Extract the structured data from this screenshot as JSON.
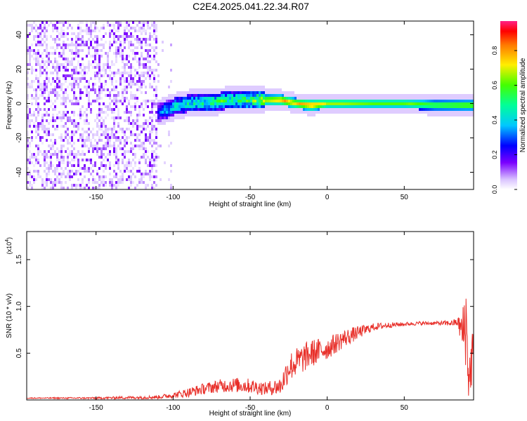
{
  "title": "C2E4.2025.041.22.34.R07",
  "chart_data": [
    {
      "type": "heatmap",
      "xlabel": "Height of straight line (km)",
      "ylabel": "Frequency (Hz)",
      "xlim": [
        -195,
        95
      ],
      "ylim": [
        -50,
        48
      ],
      "xticks": [
        -150,
        -100,
        -50,
        0,
        50
      ],
      "yticks": [
        -40,
        -20,
        0,
        20,
        40
      ],
      "colorbar": {
        "label": "Normalized spectral amplitude",
        "range": [
          0.0,
          0.97
        ],
        "ticks": [
          0.0,
          0.2,
          0.4,
          0.6,
          0.8
        ]
      },
      "colors": [
        "#ffffff",
        "#c8a6ff",
        "#7a00ff",
        "#0000ff",
        "#00c8ff",
        "#00ff88",
        "#66ff00",
        "#ffee00",
        "#ff8800",
        "#ff0000",
        "#ff2288"
      ],
      "noise_region": {
        "x": [
          -195,
          -110
        ],
        "level": 0.15
      },
      "ridge": [
        {
          "x": -108,
          "freq": -5,
          "amp": 0.35
        },
        {
          "x": -100,
          "freq": -2,
          "amp": 0.45
        },
        {
          "x": -90,
          "freq": 0,
          "amp": 0.5
        },
        {
          "x": -75,
          "freq": 1,
          "amp": 0.55
        },
        {
          "x": -60,
          "freq": 2,
          "amp": 0.55
        },
        {
          "x": -50,
          "freq": 2,
          "amp": 0.6
        },
        {
          "x": -40,
          "freq": 2,
          "amp": 0.75
        },
        {
          "x": -30,
          "freq": 2,
          "amp": 0.85
        },
        {
          "x": -20,
          "freq": 0,
          "amp": 0.8
        },
        {
          "x": -10,
          "freq": -1,
          "amp": 0.9
        },
        {
          "x": 0,
          "freq": 0,
          "amp": 0.7
        },
        {
          "x": 10,
          "freq": 0,
          "amp": 0.7
        },
        {
          "x": 30,
          "freq": 0,
          "amp": 0.65
        },
        {
          "x": 50,
          "freq": 0,
          "amp": 0.65
        },
        {
          "x": 70,
          "freq": -1,
          "amp": 0.65
        },
        {
          "x": 90,
          "freq": -1,
          "amp": 0.7
        }
      ]
    },
    {
      "type": "line",
      "xlabel": "Height of straight line (km)",
      "ylabel": "SNR (10 * v/v)",
      "yscale_label": "(x10",
      "yscale_exp": "4",
      "yscale_close": ")",
      "xlim": [
        -195,
        95
      ],
      "ylim": [
        0,
        1.8
      ],
      "xticks": [
        -150,
        -100,
        -50,
        0,
        50
      ],
      "yticks": [
        0.5,
        1.0,
        1.5
      ],
      "ytick_labels": [
        "0.5",
        "1.0",
        "1.5"
      ],
      "color": "#e8302a",
      "series": [
        {
          "x": [
            -195,
            -150,
            -110,
            -100,
            -90,
            -80,
            -70,
            -60,
            -50,
            -40,
            -30,
            -25,
            -20,
            -10,
            0,
            10,
            20,
            30,
            40,
            50,
            60,
            70,
            80,
            85,
            88,
            90,
            92,
            95
          ],
          "y": [
            0.02,
            0.02,
            0.03,
            0.05,
            0.08,
            0.12,
            0.15,
            0.16,
            0.15,
            0.12,
            0.15,
            0.35,
            0.4,
            0.5,
            0.55,
            0.65,
            0.72,
            0.78,
            0.8,
            0.81,
            0.82,
            0.82,
            0.82,
            0.83,
            0.7,
            0.85,
            0.2,
            0.6
          ],
          "noise": [
            0.005,
            0.01,
            0.02,
            0.03,
            0.05,
            0.06,
            0.07,
            0.08,
            0.08,
            0.07,
            0.1,
            0.16,
            0.16,
            0.15,
            0.12,
            0.1,
            0.07,
            0.04,
            0.03,
            0.02,
            0.02,
            0.02,
            0.03,
            0.05,
            0.3,
            0.5,
            0.3,
            0.3
          ]
        }
      ]
    }
  ]
}
